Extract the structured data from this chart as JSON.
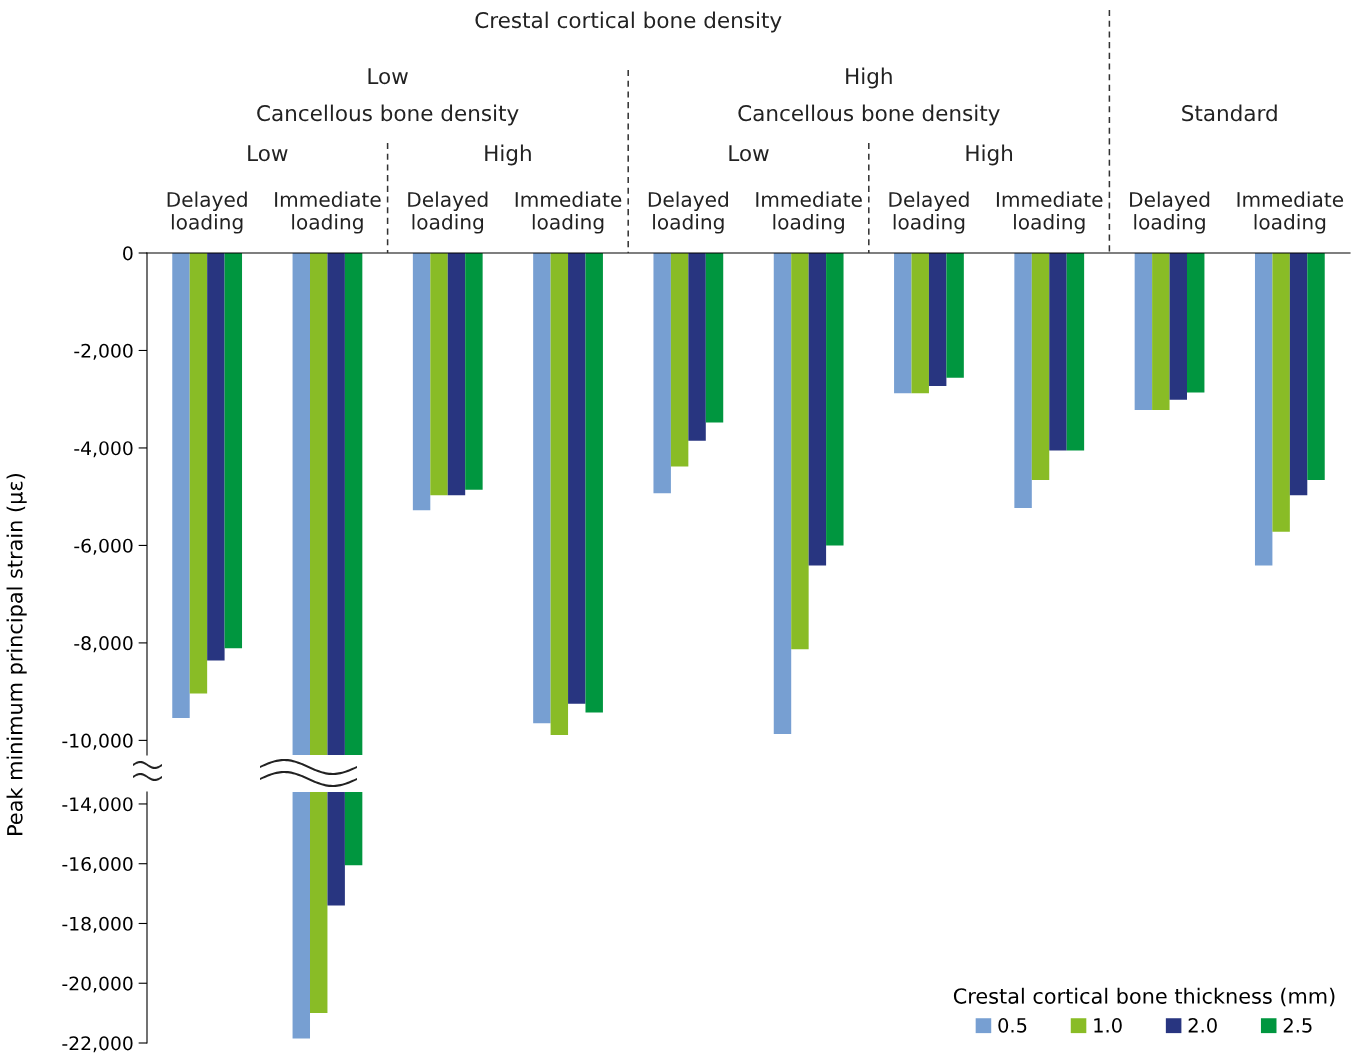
{
  "chart_data": [
    {
      "type": "bar",
      "categories": [
        "Delayed\nloading",
        "Immediate\nloading",
        "Delayed\nloading",
        "Immediate\nloading",
        "Delayed\nloading",
        "Immediate\nloading",
        "Delayed\nloading",
        "Immediate\nloading",
        "Delayed\nloading",
        "Immediate\nloading"
      ],
      "ylabel": "Peak minimum principal strain (με)",
      "annotations": [
        "Crestal cortical bone density",
        "Low",
        "High",
        "Standard",
        "Cancellous bone density",
        "Cancellous bone density",
        "Low",
        "High",
        "Low",
        "High"
      ],
      "ylim": [
        -10300,
        0
      ],
      "yticks": [
        0,
        {
          "value": -2000,
          "label": "-2,000"
        },
        {
          "value": -4000,
          "label": "-4,000"
        },
        {
          "value": -6000,
          "label": "-6,000"
        },
        {
          "value": -8000,
          "label": "-8,000"
        },
        {
          "value": -10000,
          "label": "-10,000"
        }
      ],
      "grid": false,
      "legend": false,
      "series": [
        {
          "color": "#779fd2",
          "values": [
            -9540,
            -10300,
            -5280,
            -9650,
            -4930,
            -9870,
            -2880,
            -5230,
            -3220,
            -6410
          ]
        },
        {
          "color": "#89bc26",
          "values": [
            -9040,
            -10300,
            -4970,
            -9890,
            -4380,
            -8130,
            -2880,
            -4660,
            -3220,
            -5720
          ]
        },
        {
          "color": "#283580",
          "values": [
            -8360,
            -10300,
            -4970,
            -9250,
            -3850,
            -6410,
            -2730,
            -4050,
            -3010,
            -4970
          ]
        },
        {
          "color": "#00963f",
          "values": [
            -8110,
            -10300,
            -4860,
            -9430,
            -3480,
            -6000,
            -2560,
            -4050,
            -2860,
            -4660
          ]
        }
      ]
    },
    {
      "type": "bar",
      "categories": [
        null,
        null,
        null,
        null,
        null,
        null,
        null,
        null,
        null,
        null
      ],
      "ylim": [
        -22000,
        -13600
      ],
      "yticks": [
        {
          "value": -14000,
          "label": "-14,000"
        },
        {
          "value": -16000,
          "label": "-16,000"
        },
        {
          "value": -18000,
          "label": "-18,000"
        },
        {
          "value": -20000,
          "label": "-20,000"
        },
        {
          "value": -22000,
          "label": "-22,000"
        }
      ],
      "tick_labels": "y",
      "grid": false,
      "legend": "bottom right",
      "legend_title": "Crestal cortical bone thickness (mm)",
      "series": [
        {
          "name": "0.5",
          "color": "#779fd2",
          "values": [
            null,
            -21850,
            null,
            null,
            null,
            null,
            null,
            null,
            null,
            null
          ]
        },
        {
          "name": "1.0",
          "color": "#89bc26",
          "values": [
            null,
            -21000,
            null,
            null,
            null,
            null,
            null,
            null,
            null,
            null
          ]
        },
        {
          "name": "2.0",
          "color": "#283580",
          "values": [
            null,
            -17400,
            null,
            null,
            null,
            null,
            null,
            null,
            null,
            null
          ]
        },
        {
          "name": "2.5",
          "color": "#00963f",
          "values": [
            null,
            -16050,
            null,
            null,
            null,
            null,
            null,
            null,
            null,
            null
          ]
        }
      ]
    }
  ]
}
